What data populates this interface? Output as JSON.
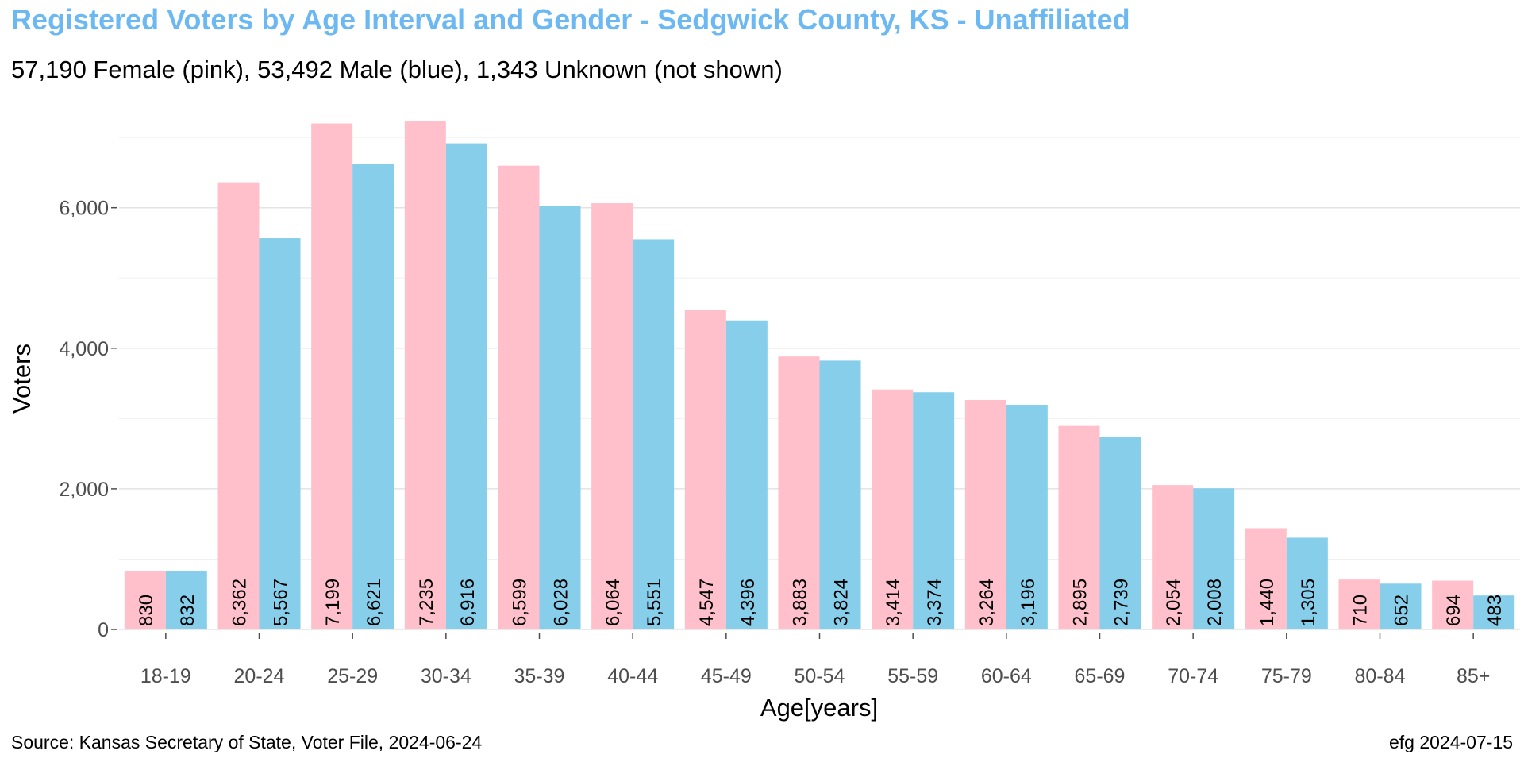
{
  "title": "Registered Voters by Age Interval and Gender - Sedgwick County, KS - Unaffiliated",
  "subtitle": "57,190 Female (pink),  53,492 Male (blue),  1,343 Unknown (not shown)",
  "caption_left": "Source: Kansas Secretary of State, Voter File, 2024-06-24",
  "caption_right": "efg 2024-07-15",
  "chart_data": {
    "type": "bar",
    "xlabel": "Age[years]",
    "ylabel": "Voters",
    "ylim": [
      0,
      7200
    ],
    "yticks": [
      0,
      2000,
      4000,
      6000
    ],
    "ytick_labels": [
      "0",
      "2,000",
      "4,000",
      "6,000"
    ],
    "grid": true,
    "categories": [
      "18-19",
      "20-24",
      "25-29",
      "30-34",
      "35-39",
      "40-44",
      "45-49",
      "50-54",
      "55-59",
      "60-64",
      "65-69",
      "70-74",
      "75-79",
      "80-84",
      "85+"
    ],
    "series": [
      {
        "name": "Female",
        "color": "#ffc0cb",
        "values": [
          830,
          6362,
          7199,
          7235,
          6599,
          6064,
          4547,
          3883,
          3414,
          3264,
          2895,
          2054,
          1440,
          710,
          694
        ],
        "labels": [
          "830",
          "6,362",
          "7,199",
          "7,235",
          "6,599",
          "6,064",
          "4,547",
          "3,883",
          "3,414",
          "3,264",
          "2,895",
          "2,054",
          "1,440",
          "710",
          "694"
        ]
      },
      {
        "name": "Male",
        "color": "#87ceeb",
        "values": [
          832,
          5567,
          6621,
          6916,
          6028,
          5551,
          4396,
          3824,
          3374,
          3196,
          2739,
          2008,
          1305,
          652,
          483
        ],
        "labels": [
          "832",
          "5,567",
          "6,621",
          "6,916",
          "6,028",
          "5,551",
          "4,396",
          "3,824",
          "3,374",
          "3,196",
          "2,739",
          "2,008",
          "1,305",
          "652",
          "483"
        ]
      }
    ]
  }
}
